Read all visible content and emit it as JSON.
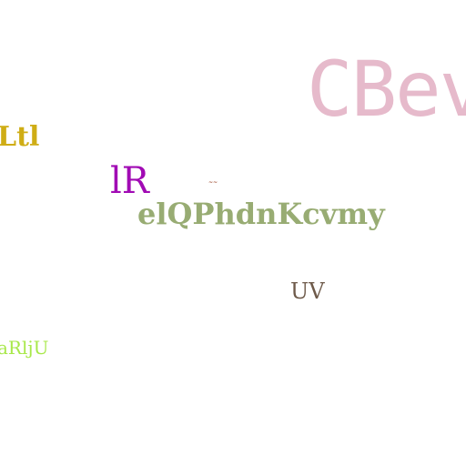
{
  "words": {
    "cbev": {
      "text": "CBev",
      "color": "#e6bacb"
    },
    "ltl": {
      "text": "Ltl",
      "color": "#cfad15"
    },
    "lr": {
      "text": "lR",
      "color": "#a10bb4"
    },
    "tiny": {
      "text": "~~",
      "color": "#9b4428"
    },
    "elq": {
      "text": "elQPhdnKcvmy",
      "color": "#98ac73"
    },
    "uv": {
      "text": "UV",
      "color": "#6e5a4a"
    },
    "arlju": {
      "text": "aRljU",
      "color": "#a8e84a"
    }
  }
}
